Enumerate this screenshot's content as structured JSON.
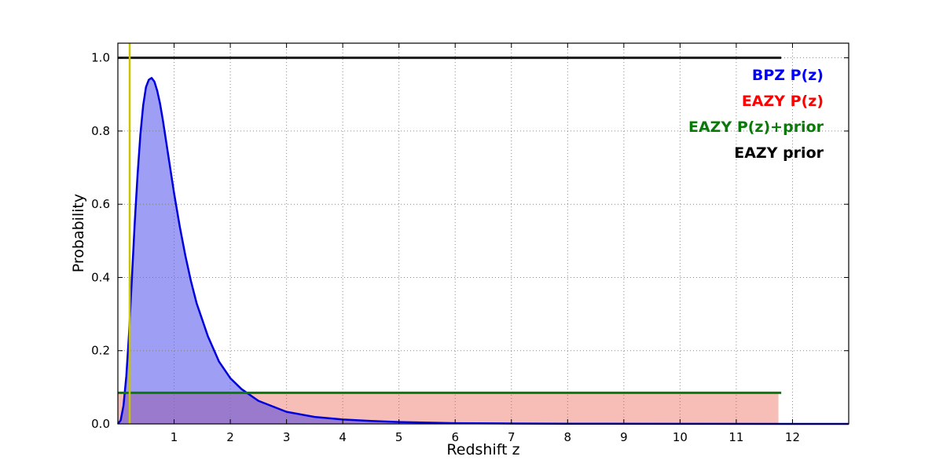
{
  "chart_data": {
    "type": "line",
    "title": "",
    "xlabel": "Redshift z",
    "ylabel": "Probability",
    "xlim": [
      0,
      13
    ],
    "ylim": [
      0,
      1.04
    ],
    "grid": true,
    "legend_position": "upper right",
    "xticks": [
      1,
      2,
      3,
      4,
      5,
      6,
      7,
      8,
      9,
      10,
      11,
      12
    ],
    "yticks": [
      0.0,
      0.2,
      0.4,
      0.6,
      0.8,
      1.0
    ],
    "ytick_labels": [
      "0.0",
      "0.2",
      "0.4",
      "0.6",
      "0.8",
      "1.0"
    ],
    "series": [
      {
        "name": "EAZY P(z)",
        "color": "#cc0000",
        "fill": "rgba(230,70,50,0.35)",
        "stroke_width": 0,
        "x": [
          0,
          11.75,
          11.75
        ],
        "y": [
          0.085,
          0.085,
          0
        ]
      },
      {
        "name": "BPZ P(z)",
        "color": "#0000dd",
        "fill": "rgba(40,40,230,0.45)",
        "stroke_width": 2.5,
        "x": [
          0,
          0.05,
          0.1,
          0.15,
          0.2,
          0.25,
          0.3,
          0.35,
          0.4,
          0.45,
          0.5,
          0.55,
          0.6,
          0.65,
          0.7,
          0.75,
          0.8,
          0.9,
          1.0,
          1.1,
          1.2,
          1.3,
          1.4,
          1.6,
          1.8,
          2.0,
          2.2,
          2.5,
          3.0,
          3.5,
          4.0,
          4.5,
          5.0,
          6.0,
          7.0,
          8.0,
          10.0,
          12.0,
          13.0
        ],
        "y": [
          0.0,
          0.01,
          0.05,
          0.13,
          0.25,
          0.4,
          0.55,
          0.68,
          0.79,
          0.87,
          0.92,
          0.94,
          0.945,
          0.935,
          0.91,
          0.875,
          0.83,
          0.73,
          0.63,
          0.54,
          0.46,
          0.39,
          0.33,
          0.24,
          0.17,
          0.125,
          0.095,
          0.063,
          0.033,
          0.019,
          0.012,
          0.008,
          0.005,
          0.002,
          0.001,
          0.0006,
          0.0002,
          0.0001,
          0.0001
        ]
      },
      {
        "name": "EAZY P(z)+prior",
        "color": "#0a7a0a",
        "fill": null,
        "stroke_width": 3,
        "x": [
          0,
          11.8
        ],
        "y": [
          0.085,
          0.085
        ]
      },
      {
        "name": "EAZY prior",
        "color": "#1a1a1a",
        "fill": null,
        "stroke_width": 3,
        "x": [
          0,
          11.8
        ],
        "y": [
          1.0,
          1.0
        ]
      }
    ],
    "vline": {
      "x": 0.21,
      "color": "#c9c400",
      "width": 2.5
    },
    "legend": [
      {
        "label": "BPZ P(z)",
        "color": "#0000ff"
      },
      {
        "label": "EAZY P(z)",
        "color": "#ff0000"
      },
      {
        "label": "EAZY P(z)+prior",
        "color": "#0a7a0a"
      },
      {
        "label": "EAZY prior",
        "color": "#000000"
      }
    ]
  }
}
